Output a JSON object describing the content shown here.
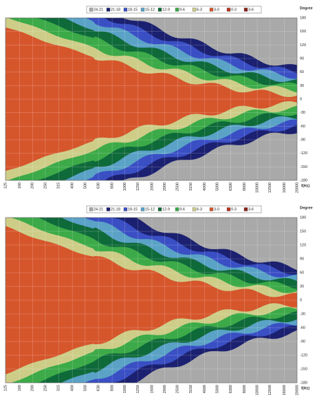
{
  "chart_data": [
    {
      "type": "contour",
      "y_label": "Degree",
      "x_label": "f(Hz)",
      "series": [
        {
          "name": "24-21",
          "color": "#a9a9a9"
        },
        {
          "name": "21-18",
          "color": "#1b2070"
        },
        {
          "name": "18-15",
          "color": "#3a4fc4"
        },
        {
          "name": "15-12",
          "color": "#5aa2c6"
        },
        {
          "name": "12-9",
          "color": "#0f6a3a"
        },
        {
          "name": "9-6",
          "color": "#3caa48"
        },
        {
          "name": "6-3",
          "color": "#cdcd88"
        },
        {
          "name": "3-0",
          "color": "#d6562c"
        },
        {
          "name": "0-3",
          "color": "#b8321f"
        },
        {
          "name": "3-6",
          "color": "#8e2016"
        }
      ],
      "xscale": "log",
      "xlim": [
        125,
        20000
      ],
      "xticks": [
        125,
        160,
        200,
        250,
        315,
        400,
        500,
        630,
        800,
        1000,
        1250,
        1600,
        2000,
        2500,
        3150,
        4000,
        5000,
        6300,
        8000,
        10000,
        12500,
        16000,
        20000
      ],
      "ylim": [
        -180,
        180
      ],
      "yticks": [
        180,
        150,
        120,
        90,
        60,
        30,
        0,
        -30,
        -60,
        -90,
        -120,
        -150,
        -180
      ],
      "grid": true
    },
    {
      "type": "contour",
      "y_label": "Degree",
      "x_label": "f(Hz)",
      "series": [
        {
          "name": "24-21",
          "color": "#a9a9a9"
        },
        {
          "name": "21-18",
          "color": "#1b2070"
        },
        {
          "name": "18-15",
          "color": "#3a4fc4"
        },
        {
          "name": "15-12",
          "color": "#5aa2c6"
        },
        {
          "name": "12-9",
          "color": "#0f6a3a"
        },
        {
          "name": "9-6",
          "color": "#3caa48"
        },
        {
          "name": "6-3",
          "color": "#cdcd88"
        },
        {
          "name": "3-0",
          "color": "#d6562c"
        },
        {
          "name": "0-3",
          "color": "#b8321f"
        },
        {
          "name": "3-6",
          "color": "#8e2016"
        }
      ],
      "xscale": "log",
      "xlim": [
        125,
        20000
      ],
      "xticks": [
        125,
        160,
        200,
        250,
        315,
        400,
        500,
        630,
        800,
        1000,
        1250,
        1600,
        2000,
        2500,
        3150,
        4000,
        5000,
        6300,
        8000,
        10000,
        12500,
        16000,
        20000
      ],
      "ylim": [
        -180,
        180
      ],
      "yticks": [
        180,
        150,
        120,
        90,
        60,
        30,
        0,
        -30,
        -60,
        -90,
        -120,
        -150,
        -180
      ],
      "grid": true
    }
  ]
}
